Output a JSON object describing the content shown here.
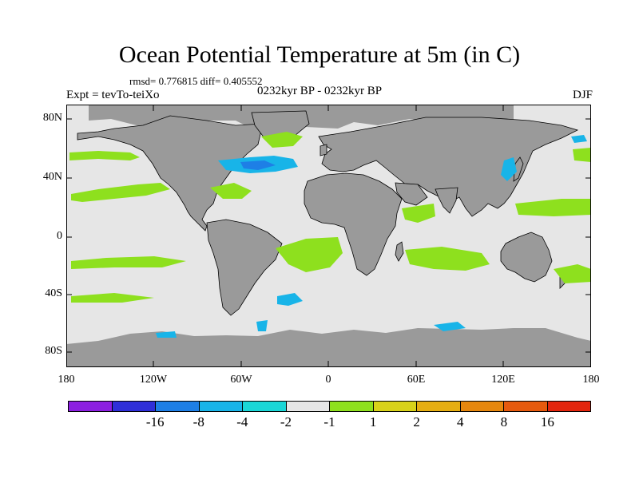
{
  "title": "Ocean Potential Temperature at 5m (in C)",
  "stats": "rmsd= 0.776815 diff= 0.405552",
  "experiment": "Expt = tevTo-teiXo",
  "period": "0232kyr BP - 0232kyr BP",
  "season": "DJF",
  "lat_ticks": [
    "80N",
    "40N",
    "0",
    "40S",
    "80S"
  ],
  "lon_ticks": [
    "180",
    "120W",
    "60W",
    "0",
    "60E",
    "120E",
    "180"
  ],
  "colorbar": {
    "colors": [
      "#8c1fe0",
      "#2f2fd8",
      "#1e7fe6",
      "#18b4e8",
      "#1ad6d6",
      "#e6e6e6",
      "#8ee01e",
      "#d8d21a",
      "#e6ae12",
      "#e6870e",
      "#e65a0e",
      "#e3260e"
    ],
    "labels": [
      "-16",
      "-8",
      "-4",
      "-2",
      "-1",
      "1",
      "2",
      "4",
      "8",
      "16"
    ]
  },
  "colors": {
    "ocean_neutral": "#e6e6e6",
    "land": "#9a9a9a",
    "warm_anomaly": "#8ee01e",
    "cool_anomaly": "#18b4e8",
    "strong_cool_anomaly": "#1e7fe6"
  }
}
